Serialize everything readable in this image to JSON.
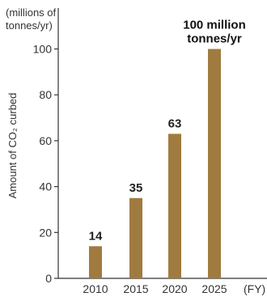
{
  "chart_data": {
    "type": "bar",
    "categories": [
      "2010",
      "2015",
      "2020",
      "2025"
    ],
    "values": [
      14,
      35,
      63,
      100
    ],
    "data_labels": [
      "14",
      "35",
      "63",
      "100 million\ntonnes/yr"
    ],
    "unit_label": "(millions of\ntonnes/yr)",
    "ylabel": "Amount of CO₂ curbed",
    "xlabel": "(FY)",
    "ylim": [
      0,
      110
    ],
    "yticks": [
      0,
      20,
      40,
      60,
      80,
      100
    ],
    "grid": false,
    "legend": "none",
    "colors": {
      "bar": "#a07b3f",
      "axis": "#333333",
      "text": "#333333"
    }
  }
}
